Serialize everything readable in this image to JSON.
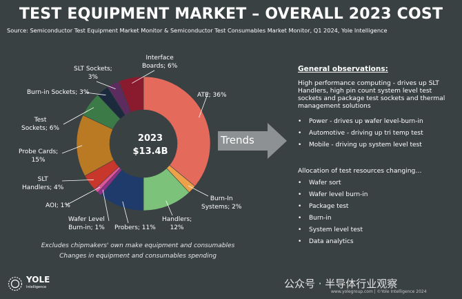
{
  "header": {
    "title": "TEST EQUIPMENT MARKET – OVERALL 2023 COST",
    "source": "Source:  Semiconductor Test Equipment Market Monitor & Semiconductor Test Consumables Market Monitor, Q1 2024, Yole Intelligence"
  },
  "chart_data": {
    "type": "pie",
    "donut": true,
    "center_label": {
      "year": "2023",
      "total": "$13.4B"
    },
    "unit": "%",
    "slices": [
      {
        "name": "ATE",
        "label": "ATE; 36%",
        "value": 36,
        "color": "#e46a5c"
      },
      {
        "name": "Burn-In Systems",
        "label": "Burn-In Systems; 2%",
        "value": 2,
        "color": "#eda24a"
      },
      {
        "name": "Handlers",
        "label": "Handlers; 12%",
        "value": 12,
        "color": "#7dc27a"
      },
      {
        "name": "Probers",
        "label": "Probers; 11%",
        "value": 11,
        "color": "#1f3b6b"
      },
      {
        "name": "Wafer Level Burn-in",
        "label": "Wafer Level Burn-in; 1%",
        "value": 1,
        "color": "#8f2f8c"
      },
      {
        "name": "AOI",
        "label": "AOI; 1%",
        "value": 1,
        "color": "#e0559a"
      },
      {
        "name": "SLT Handlers",
        "label": "SLT Handlers; 4%",
        "value": 4,
        "color": "#c8372c"
      },
      {
        "name": "Probe Cards",
        "label": "Probe Cards; 15%",
        "value": 15,
        "color": "#b97a23"
      },
      {
        "name": "Test Sockets",
        "label": "Test Sockets; 6%",
        "value": 6,
        "color": "#3c7a48"
      },
      {
        "name": "Burn-in Sockets",
        "label": "Burn-in Sockets; 3%",
        "value": 3,
        "color": "#1c2a3d"
      },
      {
        "name": "SLT Sockets",
        "label": "SLT Sockets; 3%",
        "value": 3,
        "color": "#5c2c5f"
      },
      {
        "name": "Interface Boards",
        "label": "Interface Boards; 6%",
        "value": 6,
        "color": "#8a1a2d"
      }
    ]
  },
  "labels": {
    "ate": "ATE; 36%",
    "interface_1": "Interface",
    "interface_2": "Boards; 6%",
    "slt_sockets_1": "SLT Sockets;",
    "slt_sockets_2": "3%",
    "burnin_sockets": "Burn-in Sockets; 3%",
    "test_sockets_1": "Test",
    "test_sockets_2": "Sockets; 6%",
    "probe_cards_1": "Probe Cards;",
    "probe_cards_2": "15%",
    "slt_handlers_1": "SLT",
    "slt_handlers_2": "Handlers; 4%",
    "aoi": "AOI; 1%",
    "wlbi_1": "Wafer Level",
    "wlbi_2": "Burn-in; 1%",
    "probers": "Probers; 11%",
    "handlers_1": "Handlers;",
    "handlers_2": "12%",
    "burnin_sys_1": "Burn-In",
    "burnin_sys_2": "Systems; 2%"
  },
  "trends": {
    "label": "Trends"
  },
  "observations": {
    "heading": "General observations:",
    "body": "High performance computing - drives up SLT Handlers, high pin count system level test sockets and package test sockets and thermal management solutions",
    "bullets": [
      "Power - drives up wafer level-burn-in",
      "Automotive - driving up tri temp test",
      "Mobile - driving up system level test"
    ],
    "bullet_symbol": "•"
  },
  "allocation": {
    "heading": "Allocation of test resources changing…",
    "bullets": [
      "Wafer sort",
      "Wafer level burn-in",
      "Package test",
      "Burn-in",
      "System level test",
      "Data analytics"
    ]
  },
  "footnotes": {
    "line1": "Excludes chipmakers' own make equipment and consumables",
    "line2": "Changes in equipment and consumables spending"
  },
  "footer": {
    "logo_name": "YOLE",
    "logo_sub": "Intelligence",
    "watermark": "公众号 · 半导体行业观察",
    "url": "www.yolegroup.com | ©Yole Intelligence 2024"
  },
  "colors": {
    "background": "#3a4143",
    "leader_line": "#ffffff"
  }
}
